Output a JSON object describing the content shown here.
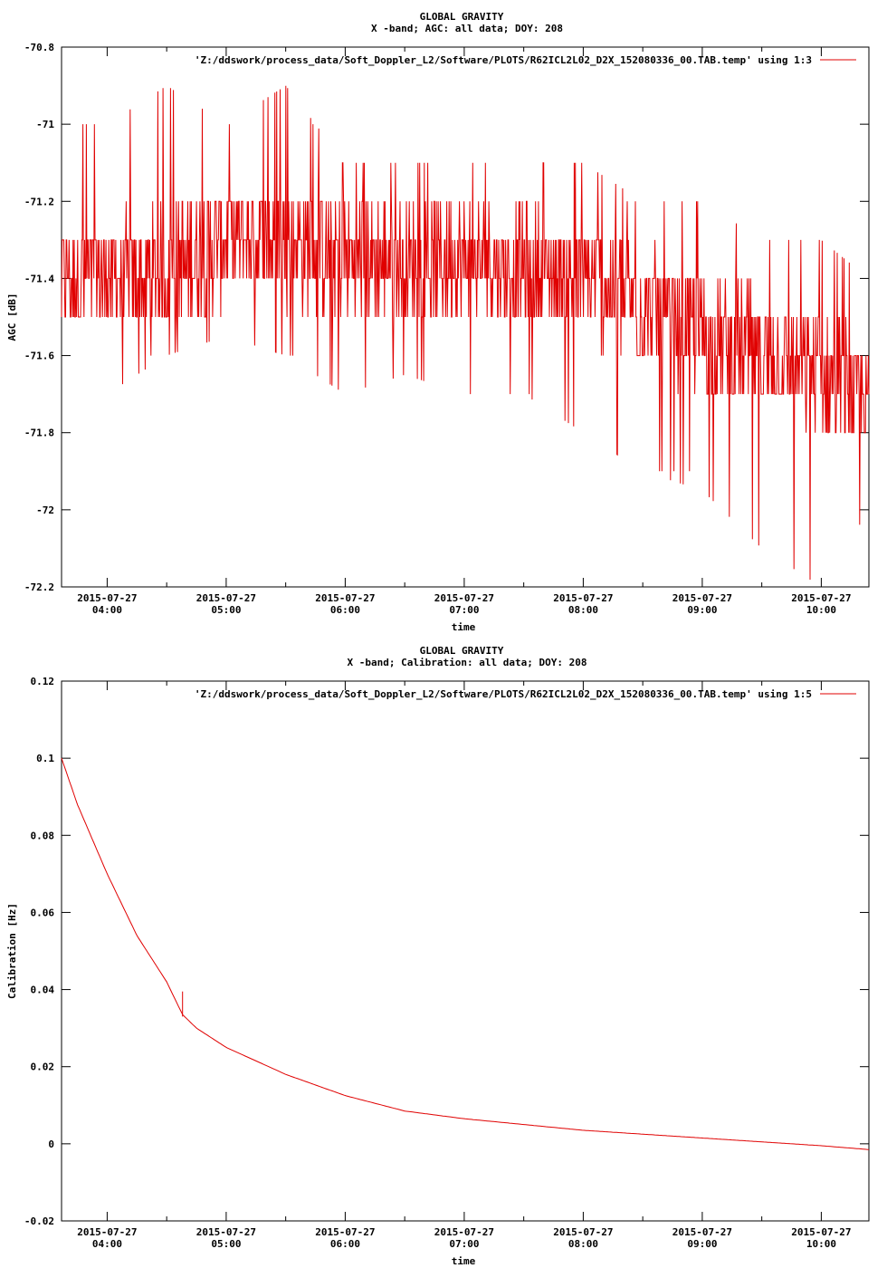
{
  "chart_data": [
    {
      "type": "line",
      "title": "GLOBAL GRAVITY",
      "subtitle": "X -band; AGC: all data; DOY: 208",
      "xlabel": "time",
      "ylabel": "AGC [dB]",
      "ylim": [
        -72.2,
        -70.8
      ],
      "yticks": [
        -70.8,
        -71,
        -71.2,
        -71.4,
        -71.6,
        -71.8,
        -72,
        -72.2
      ],
      "ytick_labels": [
        "-70.8",
        "-71",
        "-71.2",
        "-71.4",
        "-71.6",
        "-71.8",
        "-72",
        "-72.2"
      ],
      "xlim": [
        "2015-07-27 03:37",
        "2015-07-27 10:24"
      ],
      "xticks": [
        "04:00",
        "05:00",
        "06:00",
        "07:00",
        "08:00",
        "09:00",
        "10:00"
      ],
      "xtick_date": "2015-07-27",
      "legend": "top-right",
      "grid": false,
      "series": [
        {
          "name": "'Z:/ddswork/process_data/Soft_Doppler_L2/Software/PLOTS/R62ICL2L02_D2X_152080336_00.TAB.temp' using 1:3",
          "color": "#e00000",
          "x": [
            "03:37",
            "04:00",
            "04:30",
            "05:00",
            "05:30",
            "06:00",
            "06:30",
            "07:00",
            "07:30",
            "08:00",
            "08:30",
            "09:00",
            "09:30",
            "10:00",
            "10:24"
          ],
          "mean": [
            -71.4,
            -71.4,
            -71.38,
            -71.3,
            -71.3,
            -71.35,
            -71.35,
            -71.35,
            -71.38,
            -71.4,
            -71.48,
            -71.55,
            -71.6,
            -71.65,
            -71.72
          ],
          "low": [
            -71.7,
            -71.7,
            -71.6,
            -71.55,
            -71.6,
            -71.7,
            -71.65,
            -71.7,
            -71.7,
            -71.8,
            -71.9,
            -71.95,
            -72.1,
            -72.2,
            -72.0
          ],
          "high": [
            -71.0,
            -71.0,
            -70.9,
            -71.0,
            -70.9,
            -71.1,
            -71.1,
            -71.1,
            -71.1,
            -71.1,
            -71.2,
            -71.2,
            -71.3,
            -71.3,
            -71.4
          ]
        }
      ]
    },
    {
      "type": "line",
      "title": "GLOBAL GRAVITY",
      "subtitle": "X -band; Calibration: all data; DOY: 208",
      "xlabel": "time",
      "ylabel": "Calibration [Hz]",
      "ylim": [
        -0.02,
        0.12
      ],
      "yticks": [
        0.12,
        0.1,
        0.08,
        0.06,
        0.04,
        0.02,
        0,
        -0.02
      ],
      "ytick_labels": [
        "0.12",
        "0.1",
        "0.08",
        "0.06",
        "0.04",
        "0.02",
        "0",
        "-0.02"
      ],
      "xlim": [
        "2015-07-27 03:37",
        "2015-07-27 10:24"
      ],
      "xticks": [
        "04:00",
        "05:00",
        "06:00",
        "07:00",
        "08:00",
        "09:00",
        "10:00"
      ],
      "xtick_date": "2015-07-27",
      "legend": "top-right",
      "grid": false,
      "series": [
        {
          "name": "'Z:/ddswork/process_data/Soft_Doppler_L2/Software/PLOTS/R62ICL2L02_D2X_152080336_00.TAB.temp' using 1:5",
          "color": "#e00000",
          "x": [
            "03:37",
            "03:45",
            "04:00",
            "04:15",
            "04:30",
            "04:38",
            "04:45",
            "05:00",
            "05:30",
            "06:00",
            "06:30",
            "07:00",
            "07:30",
            "08:00",
            "08:30",
            "09:00",
            "09:30",
            "10:00",
            "10:24"
          ],
          "y": [
            0.1,
            0.088,
            0.07,
            0.054,
            0.042,
            0.0335,
            0.03,
            0.025,
            0.018,
            0.0125,
            0.0085,
            0.0065,
            0.005,
            0.0035,
            0.0025,
            0.0015,
            0.0005,
            -0.0005,
            -0.0015
          ],
          "spike": {
            "x": "04:38",
            "y_from": 0.033,
            "y_to": 0.0395
          }
        }
      ]
    }
  ]
}
